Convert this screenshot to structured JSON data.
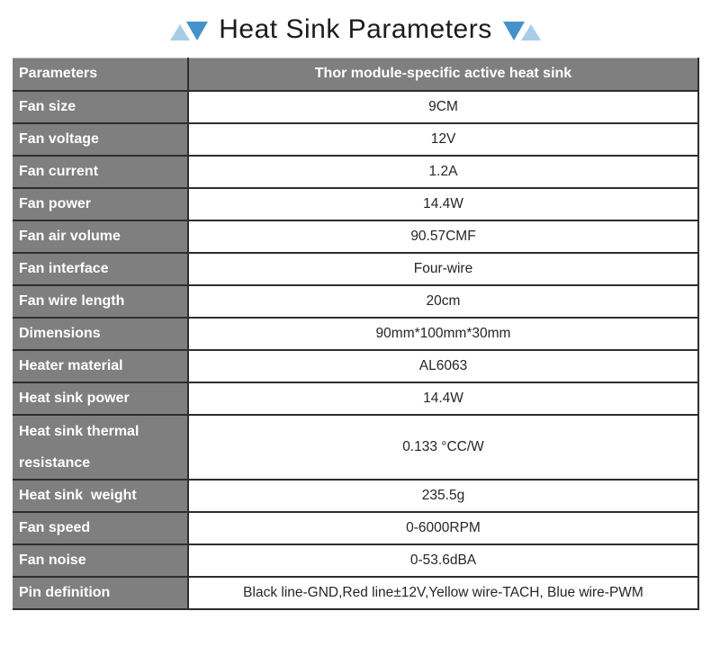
{
  "page": {
    "title": "Heat Sink Parameters"
  },
  "decorations": {
    "left_group": [
      "triangle-up-light",
      "triangle-down-dark"
    ],
    "right_group": [
      "triangle-down-dark",
      "triangle-up-light"
    ]
  },
  "colors": {
    "header_bg": "#7f7f7f",
    "border": "#2e2e2e",
    "label_text": "#ffffff",
    "value_text": "#262626",
    "title_text": "#1c1c1c",
    "triangle_light": "#a9cde7",
    "triangle_dark": "#4492c8",
    "page_bg": "#ffffff"
  },
  "table": {
    "header": {
      "param": "Parameters",
      "value": "Thor module-specific active heat sink"
    },
    "rows": [
      {
        "param": "Fan size",
        "value": "9CM"
      },
      {
        "param": "Fan voltage",
        "value": "12V"
      },
      {
        "param": "Fan current",
        "value": "1.2A"
      },
      {
        "param": "Fan power",
        "value": "14.4W"
      },
      {
        "param": "Fan air volume",
        "value": "90.57CMF"
      },
      {
        "param": "Fan interface",
        "value": "Four-wire"
      },
      {
        "param": "Fan wire length",
        "value": "20cm"
      },
      {
        "param": "Dimensions",
        "value": "90mm*100mm*30mm"
      },
      {
        "param": "Heater material",
        "value": "AL6063"
      },
      {
        "param": "Heat sink power",
        "value": "14.4W"
      },
      {
        "param": "Heat sink thermal resistance",
        "value": "0.133 °CC/W",
        "tall": true
      },
      {
        "param": "Heat sink  weight",
        "value": "235.5g"
      },
      {
        "param": "Fan speed",
        "value": "0-6000RPM"
      },
      {
        "param": "Fan noise",
        "value": "0-53.6dBA"
      },
      {
        "param": "Pin definition",
        "value": "Black line-GND,Red line±12V,Yellow wire-TACH, Blue wire-PWM"
      }
    ]
  }
}
